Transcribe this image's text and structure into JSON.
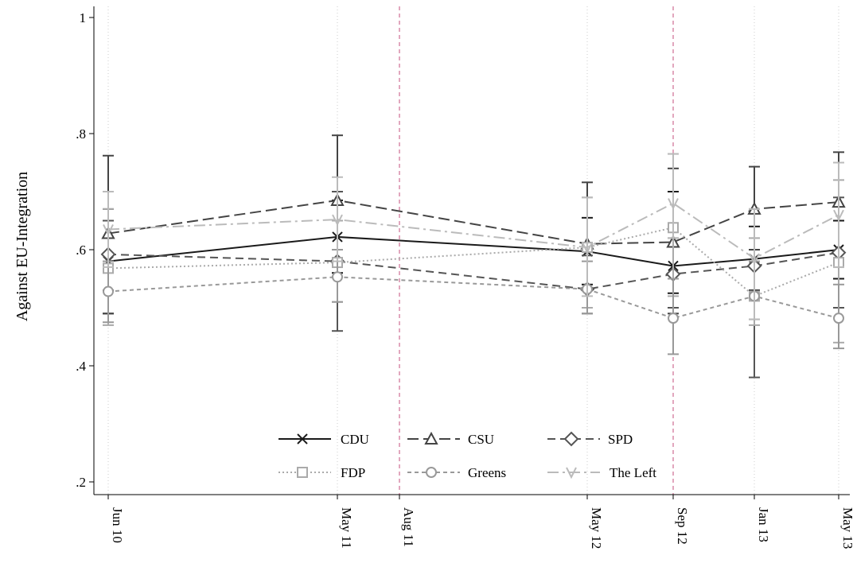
{
  "chart_data": {
    "type": "line",
    "ylabel": "Against EU-Integration",
    "xlabel": "",
    "ylim": [
      0.2,
      1.0
    ],
    "yticks": [
      {
        "value": 1.0,
        "label": "1"
      },
      {
        "value": 0.8,
        "label": ".8"
      },
      {
        "value": 0.6,
        "label": ".6"
      },
      {
        "value": 0.4,
        "label": ".4"
      },
      {
        "value": 0.2,
        "label": ".2"
      }
    ],
    "xticks": [
      {
        "date": "2010-06",
        "label": "Jun 10"
      },
      {
        "date": "2011-05",
        "label": "May 11"
      },
      {
        "date": "2011-08",
        "label": "Aug 11"
      },
      {
        "date": "2012-05",
        "label": "May 12"
      },
      {
        "date": "2012-09",
        "label": "Sep 12"
      },
      {
        "date": "2013-01",
        "label": "Jan 13"
      },
      {
        "date": "2013-05",
        "label": "May 13"
      }
    ],
    "x": [
      "2010-06",
      "2011-05",
      "2012-05",
      "2012-09",
      "2013-01",
      "2013-05"
    ],
    "event_lines": [
      "2011-08",
      "2012-09"
    ],
    "grid": "vertical-dotted",
    "legend_position": "bottom-center",
    "series": [
      {
        "name": "CDU",
        "color": "#1a1a1a",
        "marker": "x",
        "dash": "solid",
        "values": [
          0.58,
          0.622,
          0.597,
          0.572,
          0.584,
          0.6
        ],
        "ci": [
          [
            0.49,
            0.67
          ],
          [
            0.56,
            0.685
          ],
          [
            0.54,
            0.655
          ],
          [
            0.525,
            0.7
          ],
          [
            0.53,
            0.64
          ],
          [
            0.55,
            0.65
          ]
        ]
      },
      {
        "name": "CSU",
        "color": "#444444",
        "marker": "triangle",
        "dash": "long-dash",
        "values": [
          0.628,
          0.685,
          0.61,
          0.613,
          0.67,
          0.682
        ],
        "ci": [
          [
            0.49,
            0.762
          ],
          [
            0.57,
            0.797
          ],
          [
            0.5,
            0.716
          ],
          [
            0.49,
            0.74
          ],
          [
            0.6,
            0.743
          ],
          [
            0.595,
            0.768
          ]
        ]
      },
      {
        "name": "SPD",
        "color": "#555555",
        "marker": "diamond",
        "dash": "dash",
        "values": [
          0.592,
          0.58,
          0.532,
          0.558,
          0.572,
          0.595
        ],
        "ci": [
          [
            0.53,
            0.65
          ],
          [
            0.46,
            0.7
          ],
          [
            0.49,
            0.59
          ],
          [
            0.5,
            0.62
          ],
          [
            0.38,
            0.67
          ],
          [
            0.5,
            0.69
          ]
        ]
      },
      {
        "name": "FDP",
        "color": "#aaaaaa",
        "marker": "square",
        "dash": "dotted",
        "values": [
          0.568,
          0.578,
          0.604,
          0.638,
          0.52,
          0.578
        ],
        "ci": [
          [
            0.47,
            0.67
          ],
          [
            0.51,
            0.65
          ],
          [
            0.5,
            0.69
          ],
          [
            0.52,
            0.765
          ],
          [
            0.47,
            0.62
          ],
          [
            0.44,
            0.72
          ]
        ]
      },
      {
        "name": "Greens",
        "color": "#999999",
        "marker": "circle",
        "dash": "short-dash",
        "values": [
          0.528,
          0.553,
          0.532,
          0.482,
          0.52,
          0.482
        ],
        "ci": [
          [
            0.475,
            0.58
          ],
          [
            0.51,
            0.6
          ],
          [
            0.49,
            0.58
          ],
          [
            0.42,
            0.55
          ],
          [
            0.48,
            0.58
          ],
          [
            0.43,
            0.54
          ]
        ]
      },
      {
        "name": "The Left",
        "color": "#bbbbbb",
        "marker": "v",
        "dash": "dash-dot",
        "values": [
          0.635,
          0.652,
          0.604,
          0.68,
          0.585,
          0.66
        ],
        "ci": [
          [
            0.57,
            0.7
          ],
          [
            0.58,
            0.725
          ],
          [
            0.52,
            0.69
          ],
          [
            0.62,
            0.765
          ],
          [
            0.48,
            0.67
          ],
          [
            0.57,
            0.75
          ]
        ]
      }
    ]
  }
}
